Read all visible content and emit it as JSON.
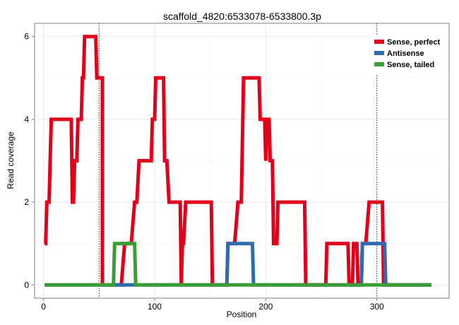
{
  "chart_data": {
    "type": "line",
    "title": "scaffold_4820:6533078-6533800.3p",
    "xlabel": "Position",
    "ylabel": "Read coverage",
    "xlim": [
      -8,
      365
    ],
    "ylim": [
      -0.32,
      6.32
    ],
    "x_ticks": [
      0,
      100,
      200,
      300
    ],
    "y_ticks": [
      0,
      2,
      4,
      6
    ],
    "grid": true,
    "legend_position": "top-right",
    "vlines": [
      50,
      300
    ],
    "series": [
      {
        "name": "Sense, perfect",
        "color": "#e3001b",
        "points": [
          [
            1,
            1
          ],
          [
            2,
            1
          ],
          [
            3,
            2
          ],
          [
            5,
            2
          ],
          [
            7,
            4
          ],
          [
            25,
            4
          ],
          [
            26,
            2
          ],
          [
            27,
            2
          ],
          [
            28,
            3
          ],
          [
            30,
            3
          ],
          [
            31,
            4
          ],
          [
            34,
            4
          ],
          [
            35,
            5
          ],
          [
            36,
            5
          ],
          [
            37,
            6
          ],
          [
            47,
            6
          ],
          [
            48,
            5
          ],
          [
            53,
            5
          ],
          [
            53,
            0
          ],
          [
            70,
            0
          ],
          [
            73,
            1
          ],
          [
            79,
            1
          ],
          [
            82,
            2
          ],
          [
            84,
            2
          ],
          [
            86,
            3
          ],
          [
            97,
            3
          ],
          [
            98,
            4
          ],
          [
            100,
            4
          ],
          [
            101,
            5
          ],
          [
            108,
            5
          ],
          [
            109,
            3
          ],
          [
            111,
            3
          ],
          [
            113,
            2
          ],
          [
            123,
            2
          ],
          [
            124,
            0
          ],
          [
            125,
            1
          ],
          [
            126,
            1
          ],
          [
            128,
            2
          ],
          [
            151,
            2
          ],
          [
            152,
            0
          ],
          [
            165,
            0
          ],
          [
            166,
            1
          ],
          [
            172,
            1
          ],
          [
            175,
            2
          ],
          [
            178,
            2
          ],
          [
            180,
            5
          ],
          [
            194,
            5
          ],
          [
            195,
            4
          ],
          [
            199,
            4
          ],
          [
            200,
            3
          ],
          [
            201,
            4
          ],
          [
            203,
            4
          ],
          [
            204,
            3
          ],
          [
            206,
            3
          ],
          [
            207,
            1
          ],
          [
            210,
            1
          ],
          [
            211,
            2
          ],
          [
            235,
            2
          ],
          [
            236,
            0
          ],
          [
            254,
            0
          ],
          [
            255,
            1
          ],
          [
            274,
            1
          ],
          [
            275,
            0
          ],
          [
            278,
            0
          ],
          [
            279,
            1
          ],
          [
            282,
            1
          ],
          [
            283,
            0
          ],
          [
            286,
            0
          ],
          [
            287,
            1
          ],
          [
            290,
            1
          ],
          [
            293,
            2
          ],
          [
            305,
            2
          ],
          [
            306,
            0
          ],
          [
            349,
            0
          ]
        ]
      },
      {
        "name": "Antisense",
        "color": "#2f6cad",
        "points": [
          [
            1,
            0
          ],
          [
            165,
            0
          ],
          [
            166,
            1
          ],
          [
            188,
            1
          ],
          [
            189,
            0
          ],
          [
            286,
            0
          ],
          [
            287,
            1
          ],
          [
            307,
            1
          ],
          [
            308,
            0
          ],
          [
            349,
            0
          ]
        ]
      },
      {
        "name": "Sense, tailed",
        "color": "#3a9e35",
        "points": [
          [
            1,
            0
          ],
          [
            63,
            0
          ],
          [
            64,
            1
          ],
          [
            82,
            1
          ],
          [
            83,
            0
          ],
          [
            349,
            0
          ]
        ]
      }
    ]
  }
}
